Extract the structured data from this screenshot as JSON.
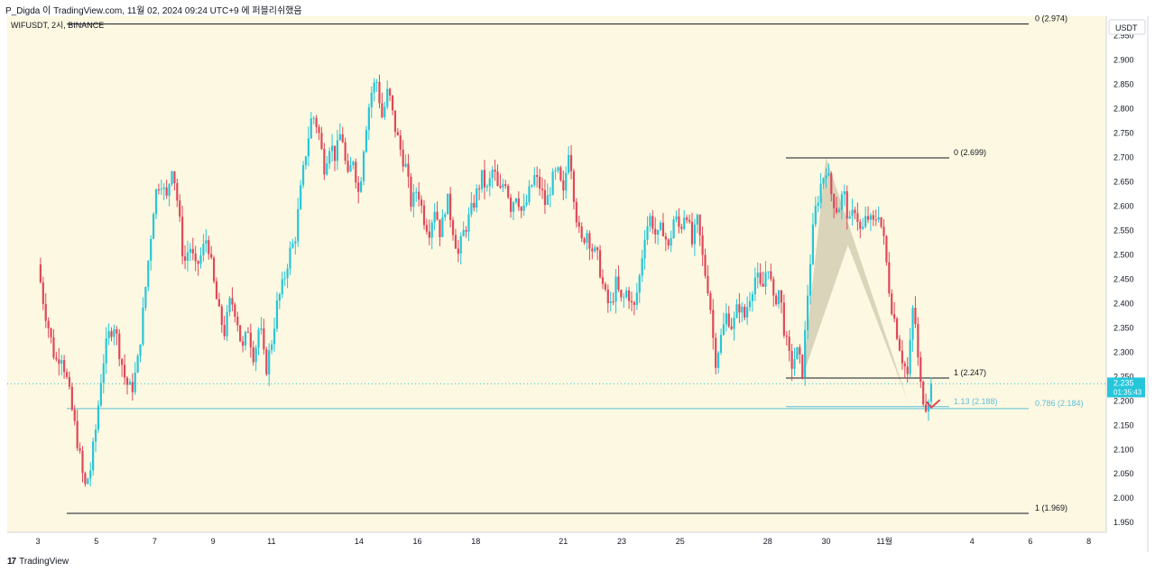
{
  "header": {
    "caption": "P_Digda 이 TradingView.com, 11월 02, 2024 09:24 UTC+9 에 퍼블리쉬했음"
  },
  "footer": {
    "logo_mark": "17",
    "logo_text": "TradingView"
  },
  "colors": {
    "background": "#fdf8e1",
    "up": "#26c6da",
    "down": "#e0485a",
    "pattern_fill": "#cfcab0",
    "price_badge": "#26c6da",
    "fib_blue": "#5bc0de",
    "line": "#131722"
  },
  "chart_data": {
    "type": "candlestick",
    "symbol_label": "WIFUSDT, 2시, BINANCE",
    "currency": "USDT",
    "ylim": [
      1.93,
      2.99
    ],
    "y_ticks": [
      "2.950",
      "2.900",
      "2.850",
      "2.800",
      "2.750",
      "2.700",
      "2.650",
      "2.600",
      "2.550",
      "2.500",
      "2.450",
      "2.400",
      "2.350",
      "2.300",
      "2.250",
      "2.200",
      "2.150",
      "2.100",
      "2.050",
      "2.000",
      "1.950"
    ],
    "y_tick_values": [
      2.95,
      2.9,
      2.85,
      2.8,
      2.75,
      2.7,
      2.65,
      2.6,
      2.55,
      2.5,
      2.45,
      2.4,
      2.35,
      2.3,
      2.25,
      2.2,
      2.15,
      2.1,
      2.05,
      2.0,
      1.95
    ],
    "x_ticks": [
      "3",
      "5",
      "7",
      "9",
      "11",
      "14",
      "16",
      "18",
      "21",
      "23",
      "25",
      "28",
      "30",
      "11월",
      "4",
      "6",
      "8"
    ],
    "x_tick_index": [
      0,
      2,
      4,
      6,
      8,
      11,
      13,
      15,
      18,
      20,
      22,
      25,
      27,
      29,
      32,
      34,
      36
    ],
    "current_price": "2.235",
    "countdown": "01:35:43",
    "current_price_value": 2.235,
    "fib_levels": [
      {
        "label": "0 (2.974)",
        "value": 2.974
      },
      {
        "label": "1 (1.969)",
        "value": 1.969
      },
      {
        "label": "0 (2.699)",
        "value": 2.699
      },
      {
        "label": "1 (2.247)",
        "value": 2.247
      },
      {
        "label": "1.13 (2.188)",
        "value": 2.188
      },
      {
        "label": "0.786 (2.184)",
        "value": 2.184
      }
    ],
    "pattern_points": [
      {
        "date_index": 26.2,
        "price": 2.25
      },
      {
        "date_index": 27.0,
        "price": 2.7
      },
      {
        "date_index": 27.75,
        "price": 2.52
      },
      {
        "date_index": 29.8,
        "price": 2.2
      }
    ],
    "price_path": [
      [
        0.0,
        2.48
      ],
      [
        0.2,
        2.4
      ],
      [
        0.4,
        2.34
      ],
      [
        0.6,
        2.28
      ],
      [
        0.8,
        2.3
      ],
      [
        1.0,
        2.24
      ],
      [
        1.2,
        2.17
      ],
      [
        1.4,
        2.1
      ],
      [
        1.6,
        2.02
      ],
      [
        1.8,
        2.06
      ],
      [
        2.0,
        2.15
      ],
      [
        2.2,
        2.27
      ],
      [
        2.4,
        2.33
      ],
      [
        2.6,
        2.36
      ],
      [
        2.8,
        2.3
      ],
      [
        3.0,
        2.24
      ],
      [
        3.2,
        2.22
      ],
      [
        3.4,
        2.27
      ],
      [
        3.6,
        2.38
      ],
      [
        3.8,
        2.5
      ],
      [
        4.0,
        2.62
      ],
      [
        4.2,
        2.66
      ],
      [
        4.4,
        2.61
      ],
      [
        4.6,
        2.69
      ],
      [
        4.8,
        2.6
      ],
      [
        5.0,
        2.48
      ],
      [
        5.2,
        2.52
      ],
      [
        5.4,
        2.47
      ],
      [
        5.6,
        2.5
      ],
      [
        5.8,
        2.54
      ],
      [
        6.0,
        2.45
      ],
      [
        6.2,
        2.38
      ],
      [
        6.4,
        2.34
      ],
      [
        6.6,
        2.41
      ],
      [
        6.8,
        2.38
      ],
      [
        7.0,
        2.3
      ],
      [
        7.2,
        2.35
      ],
      [
        7.4,
        2.29
      ],
      [
        7.6,
        2.36
      ],
      [
        7.8,
        2.26
      ],
      [
        8.0,
        2.32
      ],
      [
        8.2,
        2.4
      ],
      [
        8.4,
        2.44
      ],
      [
        8.6,
        2.5
      ],
      [
        8.8,
        2.53
      ],
      [
        9.0,
        2.63
      ],
      [
        9.2,
        2.72
      ],
      [
        9.4,
        2.79
      ],
      [
        9.6,
        2.76
      ],
      [
        9.8,
        2.68
      ],
      [
        10.0,
        2.73
      ],
      [
        10.2,
        2.7
      ],
      [
        10.4,
        2.76
      ],
      [
        10.6,
        2.65
      ],
      [
        10.8,
        2.7
      ],
      [
        11.0,
        2.62
      ],
      [
        11.2,
        2.75
      ],
      [
        11.4,
        2.83
      ],
      [
        11.6,
        2.86
      ],
      [
        11.8,
        2.78
      ],
      [
        12.0,
        2.84
      ],
      [
        12.2,
        2.77
      ],
      [
        12.4,
        2.72
      ],
      [
        12.6,
        2.68
      ],
      [
        12.8,
        2.6
      ],
      [
        13.0,
        2.64
      ],
      [
        13.2,
        2.58
      ],
      [
        13.4,
        2.55
      ],
      [
        13.6,
        2.6
      ],
      [
        13.8,
        2.54
      ],
      [
        14.0,
        2.62
      ],
      [
        14.2,
        2.56
      ],
      [
        14.4,
        2.5
      ],
      [
        14.6,
        2.55
      ],
      [
        14.8,
        2.58
      ],
      [
        15.0,
        2.62
      ],
      [
        15.2,
        2.66
      ],
      [
        15.4,
        2.63
      ],
      [
        15.6,
        2.68
      ],
      [
        15.8,
        2.62
      ],
      [
        16.0,
        2.66
      ],
      [
        16.2,
        2.6
      ],
      [
        16.4,
        2.63
      ],
      [
        16.6,
        2.58
      ],
      [
        16.8,
        2.62
      ],
      [
        17.0,
        2.66
      ],
      [
        17.2,
        2.64
      ],
      [
        17.4,
        2.6
      ],
      [
        17.6,
        2.65
      ],
      [
        17.8,
        2.67
      ],
      [
        18.0,
        2.62
      ],
      [
        18.2,
        2.73
      ],
      [
        18.4,
        2.6
      ],
      [
        18.6,
        2.52
      ],
      [
        18.8,
        2.55
      ],
      [
        19.0,
        2.51
      ],
      [
        19.2,
        2.49
      ],
      [
        19.4,
        2.42
      ],
      [
        19.6,
        2.39
      ],
      [
        19.8,
        2.44
      ],
      [
        20.0,
        2.4
      ],
      [
        20.2,
        2.43
      ],
      [
        20.4,
        2.38
      ],
      [
        20.6,
        2.45
      ],
      [
        20.8,
        2.55
      ],
      [
        21.0,
        2.58
      ],
      [
        21.2,
        2.53
      ],
      [
        21.4,
        2.56
      ],
      [
        21.6,
        2.51
      ],
      [
        21.8,
        2.58
      ],
      [
        22.0,
        2.55
      ],
      [
        22.2,
        2.6
      ],
      [
        22.4,
        2.52
      ],
      [
        22.6,
        2.57
      ],
      [
        22.8,
        2.48
      ],
      [
        23.0,
        2.42
      ],
      [
        23.2,
        2.28
      ],
      [
        23.4,
        2.33
      ],
      [
        23.6,
        2.38
      ],
      [
        23.8,
        2.35
      ],
      [
        24.0,
        2.4
      ],
      [
        24.2,
        2.37
      ],
      [
        24.4,
        2.42
      ],
      [
        24.6,
        2.46
      ],
      [
        24.8,
        2.42
      ],
      [
        25.0,
        2.49
      ],
      [
        25.2,
        2.4
      ],
      [
        25.4,
        2.43
      ],
      [
        25.6,
        2.33
      ],
      [
        25.8,
        2.27
      ],
      [
        26.0,
        2.3
      ],
      [
        26.2,
        2.26
      ],
      [
        26.4,
        2.45
      ],
      [
        26.6,
        2.58
      ],
      [
        26.8,
        2.64
      ],
      [
        27.0,
        2.68
      ],
      [
        27.2,
        2.62
      ],
      [
        27.4,
        2.59
      ],
      [
        27.6,
        2.63
      ],
      [
        27.8,
        2.56
      ],
      [
        28.0,
        2.6
      ],
      [
        28.2,
        2.54
      ],
      [
        28.4,
        2.58
      ],
      [
        28.6,
        2.56
      ],
      [
        28.8,
        2.59
      ],
      [
        29.0,
        2.52
      ],
      [
        29.2,
        2.41
      ],
      [
        29.4,
        2.35
      ],
      [
        29.6,
        2.29
      ],
      [
        29.8,
        2.25
      ],
      [
        30.0,
        2.41
      ],
      [
        30.2,
        2.24
      ],
      [
        30.4,
        2.19
      ],
      [
        30.6,
        2.23
      ]
    ]
  }
}
